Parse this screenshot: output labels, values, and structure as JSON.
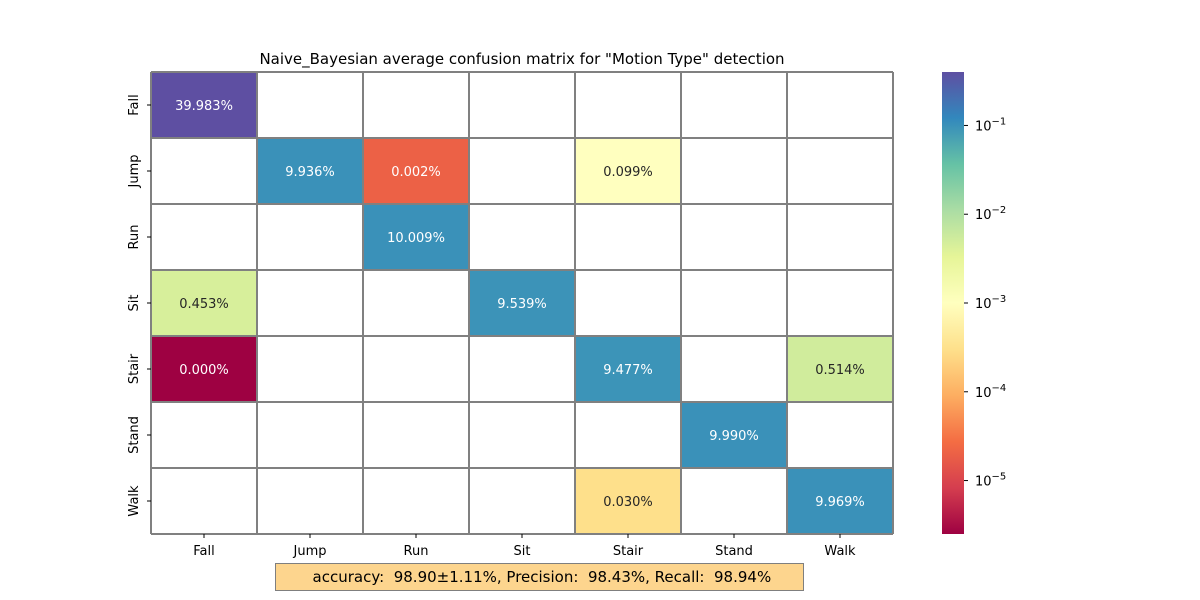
{
  "chart_data": {
    "type": "heatmap",
    "title": "Naive_Bayesian average confusion matrix for \"Motion Type\" detection",
    "x_labels": [
      "Fall",
      "Jump",
      "Run",
      "Sit",
      "Stair",
      "Stand",
      "Walk"
    ],
    "y_labels": [
      "Fall",
      "Jump",
      "Run",
      "Sit",
      "Stair",
      "Stand",
      "Walk"
    ],
    "cells": [
      {
        "row": "Fall",
        "col": "Fall",
        "value": 0.39983,
        "label": "39.983%"
      },
      {
        "row": "Jump",
        "col": "Jump",
        "value": 0.09936,
        "label": "9.936%"
      },
      {
        "row": "Jump",
        "col": "Run",
        "value": 2e-05,
        "label": "0.002%"
      },
      {
        "row": "Jump",
        "col": "Stair",
        "value": 0.00099,
        "label": "0.099%"
      },
      {
        "row": "Run",
        "col": "Run",
        "value": 0.10009,
        "label": "10.009%"
      },
      {
        "row": "Sit",
        "col": "Fall",
        "value": 0.00453,
        "label": "0.453%"
      },
      {
        "row": "Sit",
        "col": "Sit",
        "value": 0.09539,
        "label": "9.539%"
      },
      {
        "row": "Stair",
        "col": "Fall",
        "value": 2.5e-06,
        "label": "0.000%"
      },
      {
        "row": "Stair",
        "col": "Stair",
        "value": 0.09477,
        "label": "9.477%"
      },
      {
        "row": "Stair",
        "col": "Walk",
        "value": 0.00514,
        "label": "0.514%"
      },
      {
        "row": "Stand",
        "col": "Stand",
        "value": 0.0999,
        "label": "9.990%"
      },
      {
        "row": "Walk",
        "col": "Stair",
        "value": 0.0003,
        "label": "0.030%"
      },
      {
        "row": "Walk",
        "col": "Walk",
        "value": 0.09969,
        "label": "9.969%"
      }
    ],
    "colorbar": {
      "scale": "log",
      "range": [
        2.5e-06,
        0.4
      ],
      "ticks": [
        {
          "exp": "−1",
          "value": 0.1
        },
        {
          "exp": "−2",
          "value": 0.01
        },
        {
          "exp": "−3",
          "value": 0.001
        },
        {
          "exp": "−4",
          "value": 0.0001
        },
        {
          "exp": "−5",
          "value": 1e-05
        }
      ],
      "colormap": "Spectral"
    },
    "empty_cell_color": "#ffffff",
    "grid_color": "#808080"
  },
  "metrics_text": " accuracy:  98.90±1.11%, Precision:  98.43%, Recall:  98.94%"
}
